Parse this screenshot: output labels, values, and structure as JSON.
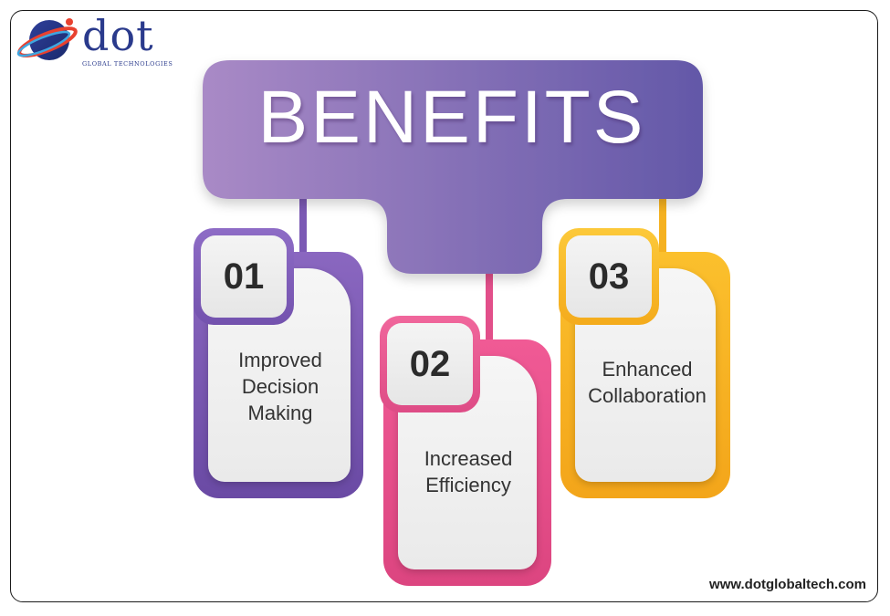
{
  "logo": {
    "word": "dot",
    "tagline": "GLOBAL TECHNOLOGIES"
  },
  "title": "BENEFITS",
  "benefits": [
    {
      "number": "01",
      "text_lines": [
        "Improved",
        "Decision",
        "Making"
      ],
      "color": "#7b59b4"
    },
    {
      "number": "02",
      "text_lines": [
        "Increased",
        "Efficiency"
      ],
      "color": "#e24f8a"
    },
    {
      "number": "03",
      "text_lines": [
        "Enhanced",
        "Collaboration"
      ],
      "color": "#f5b120"
    }
  ],
  "banner_colors": [
    "#a98ac6",
    "#6358a8"
  ],
  "website": "www.dotglobaltech.com"
}
